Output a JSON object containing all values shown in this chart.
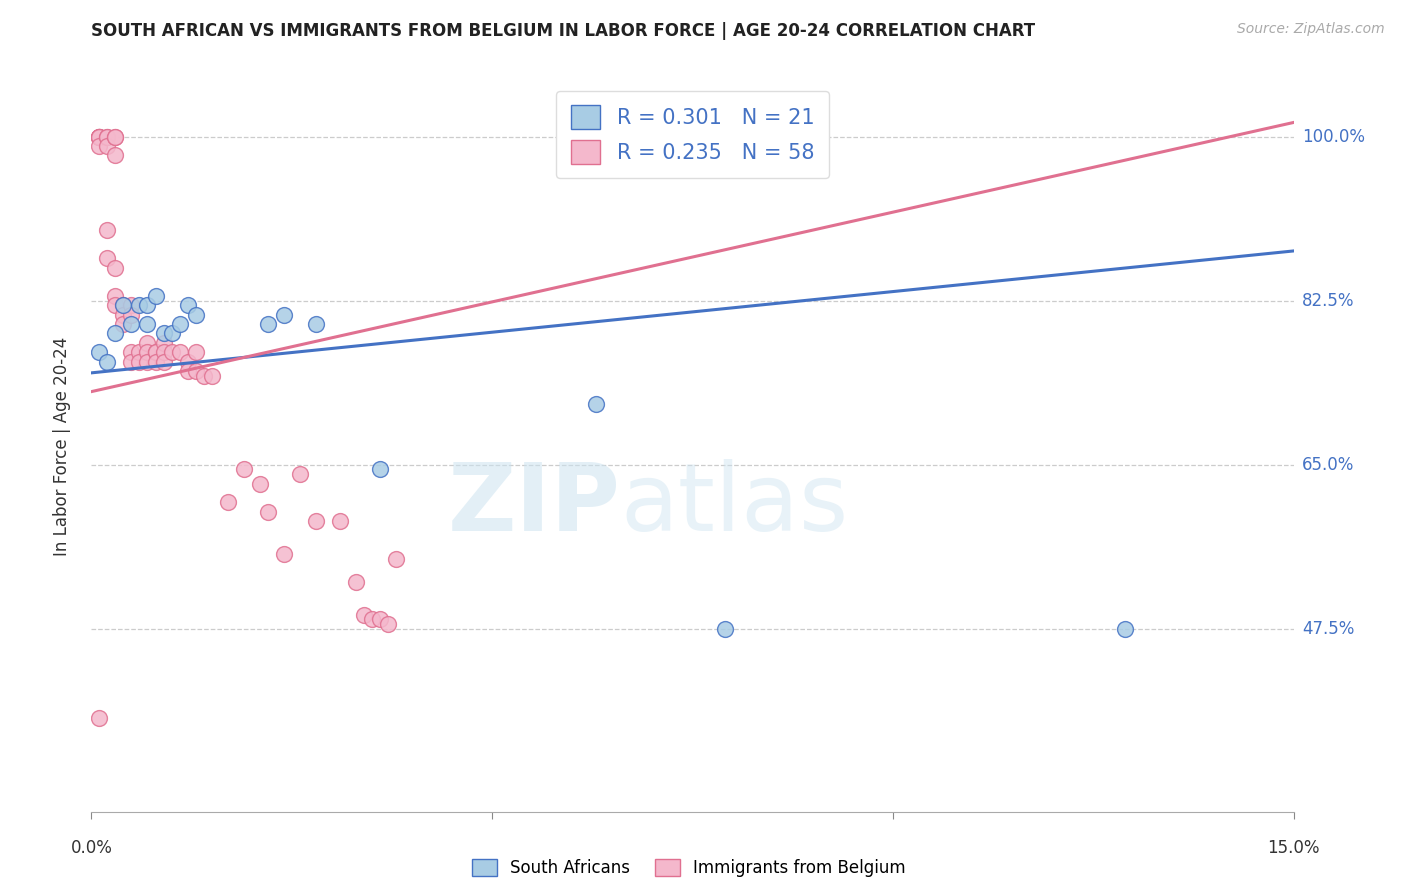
{
  "title": "SOUTH AFRICAN VS IMMIGRANTS FROM BELGIUM IN LABOR FORCE | AGE 20-24 CORRELATION CHART",
  "source": "Source: ZipAtlas.com",
  "ylabel": "In Labor Force | Age 20-24",
  "y_ticks": [
    0.475,
    0.65,
    0.825,
    1.0
  ],
  "y_tick_labels": [
    "47.5%",
    "65.0%",
    "82.5%",
    "100.0%"
  ],
  "xlim": [
    0.0,
    0.15
  ],
  "ylim": [
    0.28,
    1.06
  ],
  "blue_R": 0.301,
  "blue_N": 21,
  "pink_R": 0.235,
  "pink_N": 58,
  "blue_color": "#a8cce4",
  "pink_color": "#f4b8cc",
  "blue_edge_color": "#4472c4",
  "pink_edge_color": "#e07090",
  "blue_line_color": "#4472c4",
  "pink_line_color": "#e07090",
  "right_label_color": "#4472c4",
  "legend_label_blue": "South Africans",
  "legend_label_pink": "Immigrants from Belgium",
  "blue_line_x0": 0.0,
  "blue_line_y0": 0.748,
  "blue_line_x1": 0.15,
  "blue_line_y1": 0.878,
  "pink_line_x0": 0.0,
  "pink_line_y0": 0.728,
  "pink_line_x1": 0.15,
  "pink_line_y1": 1.015,
  "blue_scatter_x": [
    0.001,
    0.002,
    0.003,
    0.004,
    0.005,
    0.006,
    0.007,
    0.007,
    0.008,
    0.009,
    0.01,
    0.011,
    0.012,
    0.013,
    0.022,
    0.024,
    0.028,
    0.036,
    0.063,
    0.079,
    0.129
  ],
  "blue_scatter_y": [
    0.77,
    0.76,
    0.79,
    0.82,
    0.8,
    0.82,
    0.82,
    0.8,
    0.83,
    0.79,
    0.79,
    0.8,
    0.82,
    0.81,
    0.8,
    0.81,
    0.8,
    0.645,
    0.715,
    0.475,
    0.475
  ],
  "pink_scatter_x": [
    0.001,
    0.001,
    0.001,
    0.001,
    0.001,
    0.001,
    0.002,
    0.002,
    0.002,
    0.002,
    0.002,
    0.003,
    0.003,
    0.003,
    0.003,
    0.003,
    0.003,
    0.004,
    0.004,
    0.004,
    0.005,
    0.005,
    0.005,
    0.005,
    0.006,
    0.006,
    0.007,
    0.007,
    0.007,
    0.008,
    0.008,
    0.008,
    0.009,
    0.009,
    0.009,
    0.01,
    0.011,
    0.012,
    0.012,
    0.013,
    0.013,
    0.014,
    0.015,
    0.017,
    0.019,
    0.021,
    0.022,
    0.024,
    0.026,
    0.028,
    0.031,
    0.033,
    0.034,
    0.035,
    0.036,
    0.037,
    0.038,
    0.001
  ],
  "pink_scatter_y": [
    1.0,
    1.0,
    1.0,
    1.0,
    1.0,
    0.99,
    1.0,
    1.0,
    0.99,
    0.9,
    0.87,
    1.0,
    1.0,
    0.98,
    0.86,
    0.83,
    0.82,
    0.82,
    0.81,
    0.8,
    0.82,
    0.81,
    0.77,
    0.76,
    0.77,
    0.76,
    0.78,
    0.77,
    0.76,
    0.77,
    0.77,
    0.76,
    0.78,
    0.77,
    0.76,
    0.77,
    0.77,
    0.76,
    0.75,
    0.77,
    0.75,
    0.745,
    0.745,
    0.61,
    0.645,
    0.63,
    0.6,
    0.555,
    0.64,
    0.59,
    0.59,
    0.525,
    0.49,
    0.485,
    0.485,
    0.48,
    0.55,
    0.38
  ]
}
